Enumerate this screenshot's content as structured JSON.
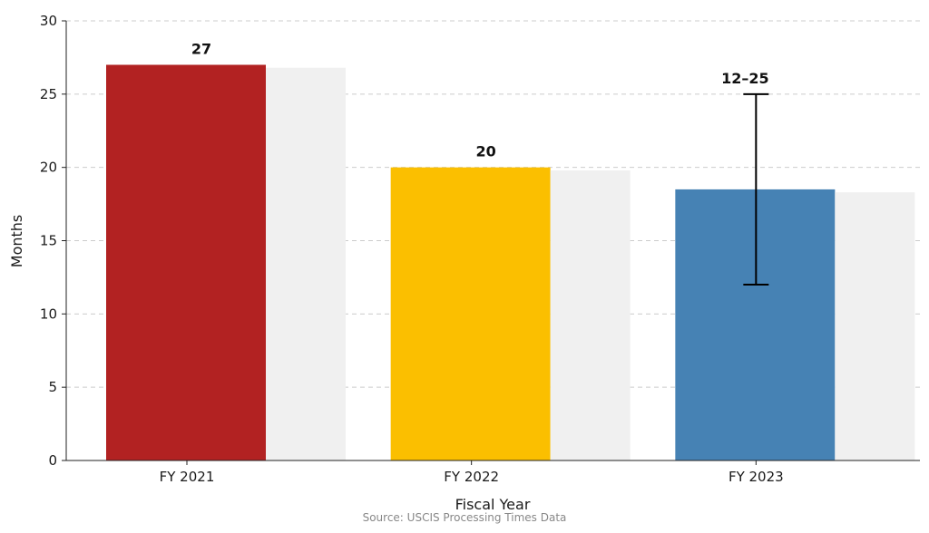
{
  "chart_data": {
    "type": "bar",
    "title": "",
    "xlabel": "Fiscal Year",
    "ylabel": "Months",
    "ylim": [
      0,
      30
    ],
    "yticks": [
      0,
      5,
      10,
      15,
      20,
      25,
      30
    ],
    "grid": "horizontal-dashed",
    "categories": [
      "FY 2021",
      "FY 2022",
      "FY 2023"
    ],
    "series": [
      {
        "values": [
          27,
          20,
          18.5
        ],
        "colors": [
          "#b22222",
          "#fbbf00",
          "#4682b4"
        ]
      },
      {
        "values": [
          26.8,
          19.8,
          18.3
        ],
        "colors": [
          "#f0f0f0",
          "#f0f0f0",
          "#f0f0f0"
        ]
      }
    ],
    "error_bars": [
      null,
      null,
      {
        "low": 12,
        "high": 25
      }
    ],
    "data_labels": [
      "27",
      "20",
      "12–25"
    ],
    "source": "Source: USCIS Processing Times Data"
  }
}
